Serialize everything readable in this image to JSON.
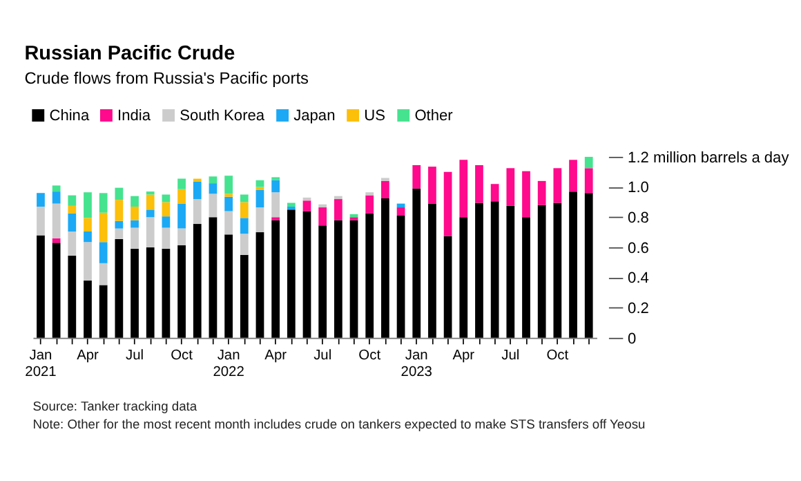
{
  "chart_data": {
    "type": "bar",
    "stacked": true,
    "title": "Russian Pacific Crude",
    "subtitle": "Crude flows from Russia's Pacific ports",
    "categories": [
      "Jan 2021",
      null,
      null,
      "Apr",
      null,
      null,
      "Jul",
      null,
      null,
      "Oct",
      null,
      null,
      "Jan 2022",
      null,
      null,
      "Apr",
      null,
      null,
      "Jul",
      null,
      null,
      "Oct",
      null,
      null,
      "Jan 2023",
      null,
      null,
      "Apr",
      null,
      null,
      "Jul",
      null,
      null,
      "Oct",
      null,
      null
    ],
    "series": [
      {
        "name": "China",
        "color": "#000000",
        "values": [
          0.68,
          0.63,
          0.545,
          0.38,
          0.35,
          0.655,
          0.59,
          0.6,
          0.59,
          0.615,
          0.755,
          0.8,
          0.685,
          0.55,
          0.7,
          0.78,
          0.85,
          0.84,
          0.745,
          0.78,
          0.78,
          0.825,
          0.925,
          0.81,
          0.99,
          0.89,
          0.675,
          0.8,
          0.895,
          0.905,
          0.875,
          0.8,
          0.88,
          0.895,
          0.97,
          0.96
        ]
      },
      {
        "name": "India",
        "color": "#ff0a8c",
        "values": [
          null,
          0.03,
          null,
          null,
          null,
          null,
          null,
          null,
          null,
          null,
          null,
          null,
          null,
          null,
          null,
          0.02,
          null,
          0.07,
          0.12,
          0.14,
          0.02,
          0.12,
          0.115,
          0.055,
          0.155,
          0.245,
          0.425,
          0.38,
          0.25,
          0.115,
          0.25,
          0.305,
          0.16,
          0.23,
          0.21,
          0.165
        ]
      },
      {
        "name": "South Korea",
        "color": "#cccccc",
        "values": [
          0.19,
          0.23,
          0.16,
          0.255,
          0.145,
          0.07,
          0.14,
          0.2,
          0.14,
          0.11,
          0.165,
          0.155,
          0.155,
          0.14,
          0.165,
          0.165,
          null,
          0.02,
          0.02,
          0.02,
          null,
          0.02,
          0.02,
          null,
          null,
          null,
          null,
          null,
          null,
          null,
          null,
          null,
          null,
          null,
          null,
          null
        ]
      },
      {
        "name": "Japan",
        "color": "#1ba9f5",
        "values": [
          0.09,
          0.08,
          0.12,
          0.07,
          0.14,
          0.05,
          0.05,
          0.05,
          0.075,
          0.165,
          0.115,
          0.07,
          0.095,
          0.105,
          0.115,
          0.08,
          0.02,
          null,
          null,
          null,
          null,
          null,
          null,
          0.025,
          null,
          null,
          null,
          null,
          null,
          null,
          null,
          null,
          null,
          null,
          null,
          null
        ]
      },
      {
        "name": "US",
        "color": "#fcbf0a",
        "values": [
          null,
          null,
          0.05,
          0.09,
          0.195,
          0.14,
          0.09,
          0.1,
          0.095,
          0.095,
          0.02,
          null,
          0.02,
          0.105,
          0.02,
          null,
          null,
          null,
          null,
          null,
          null,
          null,
          null,
          null,
          null,
          null,
          null,
          null,
          null,
          null,
          null,
          null,
          null,
          null,
          null,
          null
        ]
      },
      {
        "name": "Other",
        "color": "#45e38f",
        "values": [
          null,
          0.04,
          0.07,
          0.17,
          0.13,
          0.08,
          0.07,
          0.02,
          0.05,
          0.07,
          null,
          0.045,
          0.12,
          0.05,
          0.045,
          0.02,
          0.025,
          null,
          null,
          null,
          0.02,
          null,
          null,
          null,
          null,
          null,
          null,
          null,
          null,
          null,
          null,
          null,
          null,
          null,
          null,
          0.075
        ]
      }
    ],
    "ylim": [
      0,
      1.2
    ],
    "yticks": [
      0,
      0.2,
      0.4,
      0.6,
      0.8,
      {
        "value": 1,
        "label": "1.0"
      },
      {
        "value": 1.2,
        "label": "1.2 million barrels a day"
      }
    ],
    "legend": "top left",
    "grid": false,
    "annotations": [
      "Source: Tanker tracking data",
      "Note: Other for the most recent month includes crude on tankers expected to make STS transfers off Yeosu"
    ]
  }
}
